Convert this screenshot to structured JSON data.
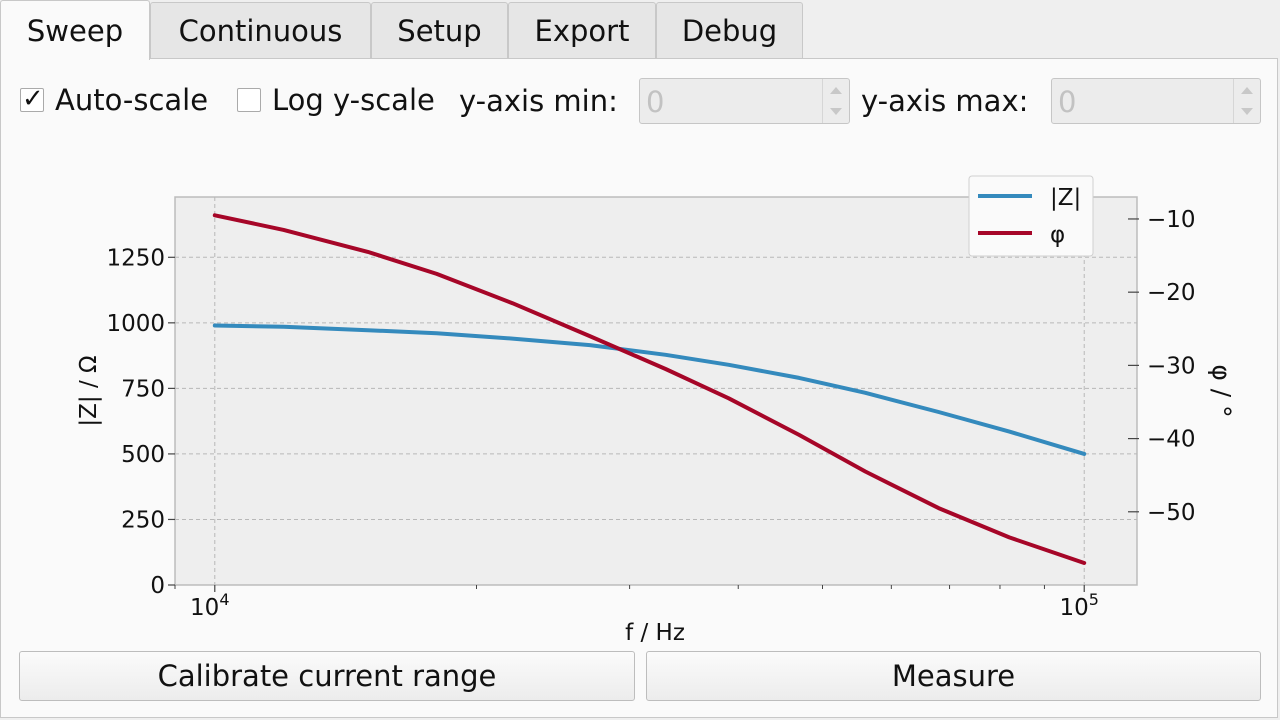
{
  "tabs": [
    {
      "label": "Sweep",
      "active": true
    },
    {
      "label": "Continuous",
      "active": false
    },
    {
      "label": "Setup",
      "active": false
    },
    {
      "label": "Export",
      "active": false
    },
    {
      "label": "Debug",
      "active": false
    }
  ],
  "controls": {
    "autoscale": {
      "label": "Auto-scale",
      "checked": true,
      "mark": "✓"
    },
    "log_y": {
      "label": "Log y-scale",
      "checked": false
    },
    "ymin": {
      "label": "y-axis min:",
      "value": "0",
      "enabled": false
    },
    "ymax": {
      "label": "y-axis max:",
      "value": "0",
      "enabled": false
    }
  },
  "buttons": {
    "calibrate": "Calibrate current range",
    "measure": "Measure"
  },
  "chart_data": {
    "type": "line",
    "xlabel": "f / Hz",
    "ylabel_left": "|Z| / Ω",
    "ylabel_right": "φ / °",
    "xscale": "log",
    "xlim": [
      9000,
      115000
    ],
    "ylim_left": [
      0,
      1480
    ],
    "ylim_right": [
      -60,
      -7
    ],
    "x_ticks": [
      {
        "value": 10000,
        "base": "10",
        "exp": "4"
      },
      {
        "value": 100000,
        "base": "10",
        "exp": "5"
      }
    ],
    "y_ticks_left": [
      0,
      250,
      500,
      750,
      1000,
      1250
    ],
    "y_ticks_right": [
      -10,
      -20,
      -30,
      -40,
      -50
    ],
    "y_tick_labels_right": [
      "−10",
      "−20",
      "−30",
      "−40",
      "−50"
    ],
    "grid": true,
    "legend_position": "top-right",
    "x": [
      10000,
      12000,
      15000,
      18000,
      22000,
      27000,
      33000,
      39000,
      47000,
      56000,
      68000,
      82000,
      100000
    ],
    "series": [
      {
        "name": "|Z|",
        "axis": "left",
        "color": "#348abd",
        "values": [
          990,
          985,
          972,
          960,
          940,
          915,
          878,
          840,
          790,
          733,
          660,
          585,
          500
        ]
      },
      {
        "name": "φ",
        "axis": "right",
        "color": "#a60628",
        "values": [
          -9.5,
          -11.5,
          -14.5,
          -17.5,
          -21.5,
          -26.0,
          -30.5,
          -34.5,
          -39.5,
          -44.5,
          -49.5,
          -53.5,
          -57.0
        ]
      }
    ]
  }
}
